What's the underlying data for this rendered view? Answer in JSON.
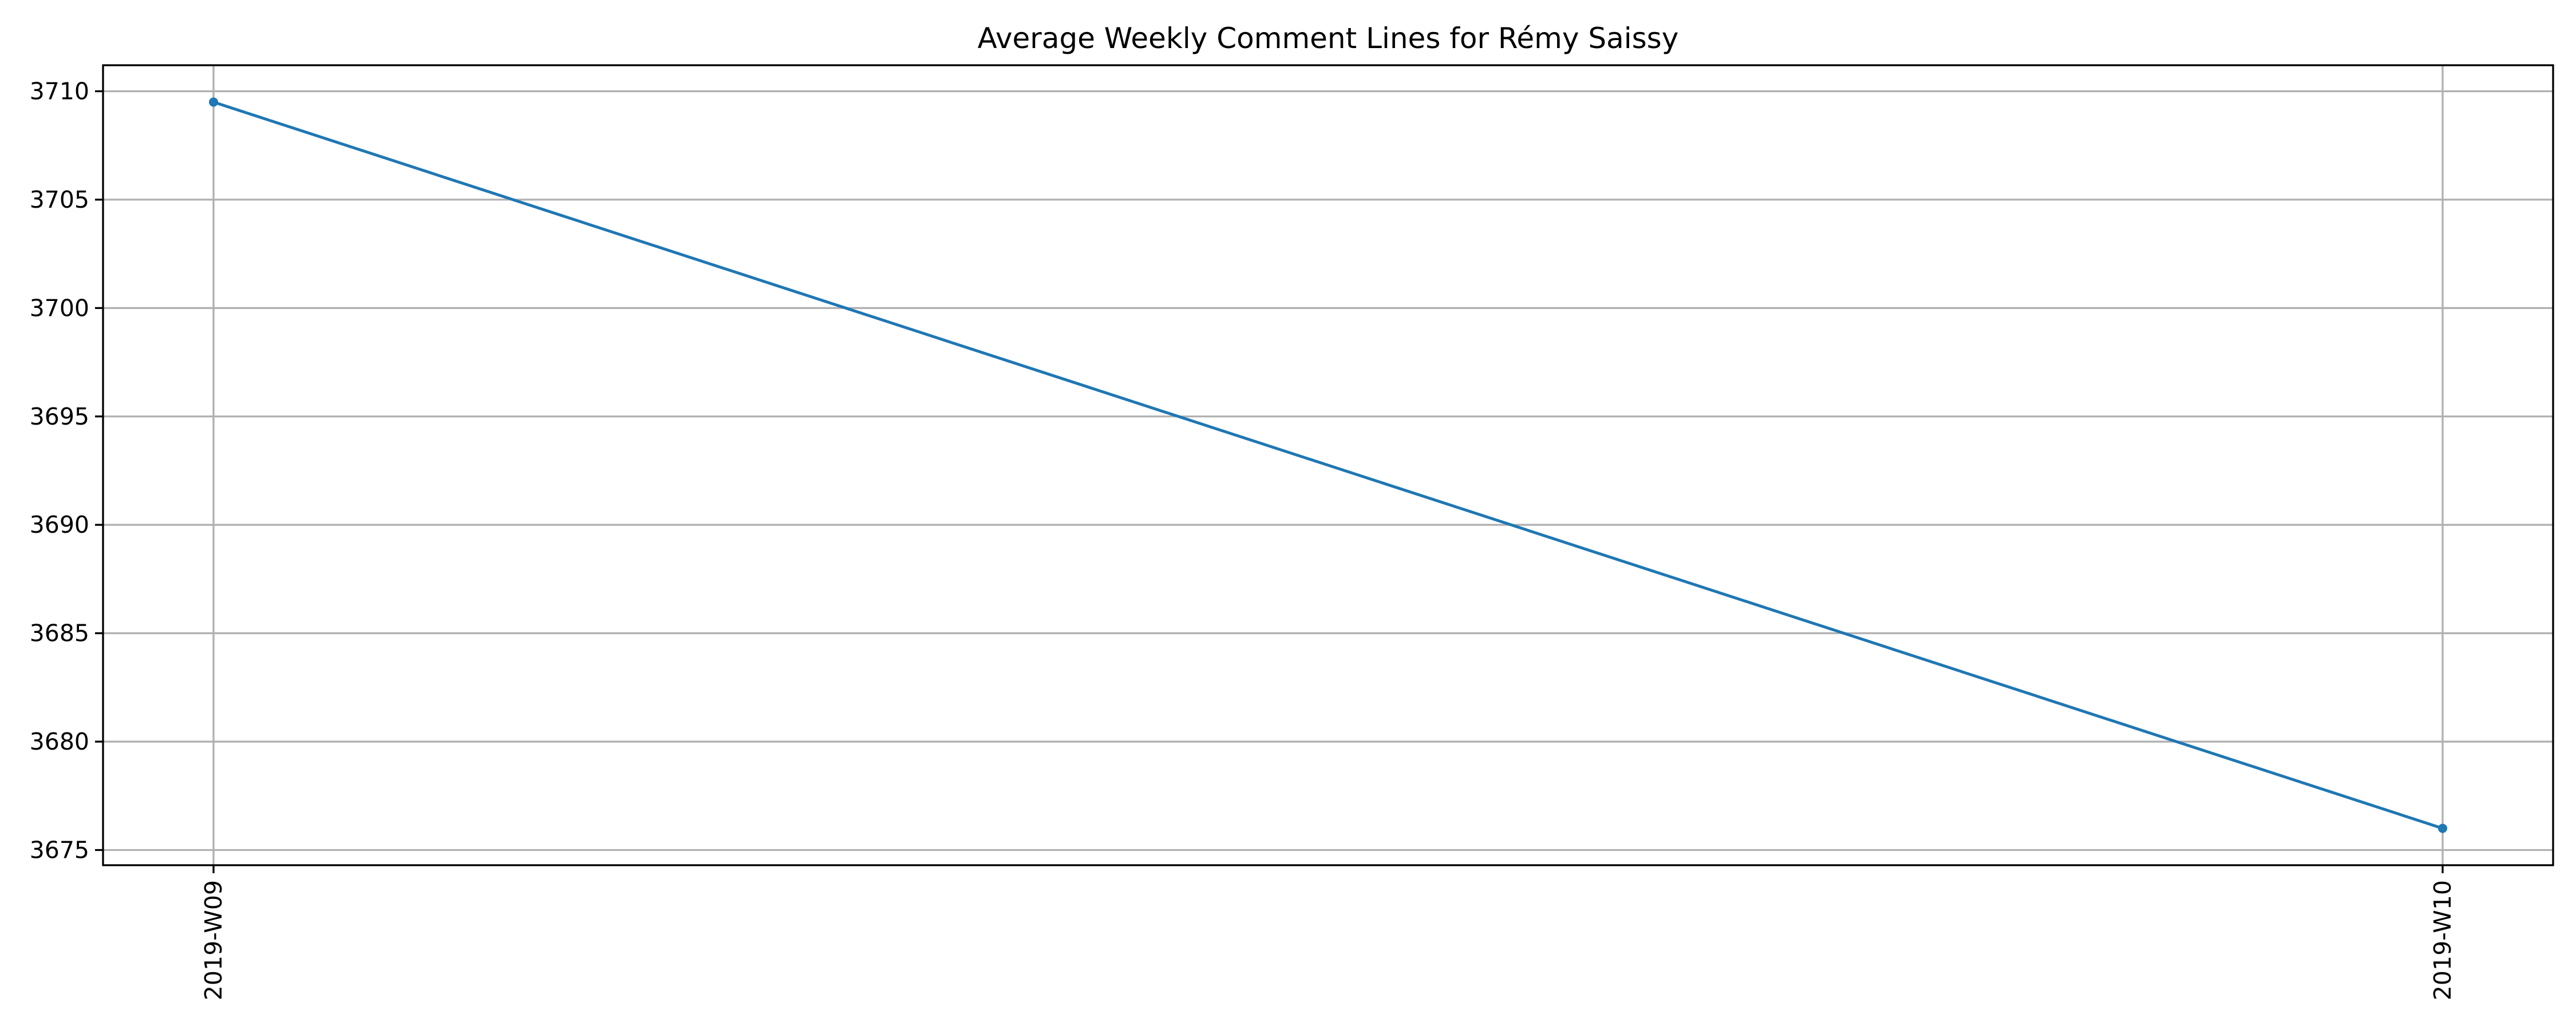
{
  "chart_data": {
    "type": "line",
    "title": "Average Weekly Comment Lines for Rémy Saissy",
    "xlabel": "",
    "ylabel": "",
    "categories": [
      "2019-W09",
      "2019-W10"
    ],
    "series": [
      {
        "values": [
          3709.5,
          3676.0
        ],
        "color": "#1f77b4",
        "marker": "circle"
      }
    ],
    "ylim": [
      3674.3,
      3711.2
    ],
    "yticks": [
      3675,
      3680,
      3685,
      3690,
      3695,
      3700,
      3705,
      3710
    ],
    "x_tick_rotation": "vertical",
    "grid": true,
    "legend": "none"
  }
}
